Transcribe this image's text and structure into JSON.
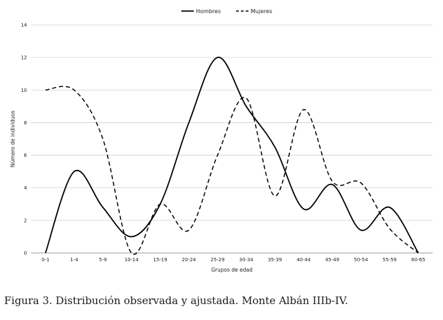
{
  "caption": "Figura 3. Distribución observada y ajustada. Monte Albán IIIb-IV.",
  "chart_data": {
    "type": "line",
    "title": "",
    "xlabel": "Grupos de edad",
    "ylabel": "Número de individuos",
    "categories": [
      "0-1",
      "1-4",
      "5-9",
      "10-14",
      "15-19",
      "20-24",
      "25-29",
      "30-34",
      "35-39",
      "40-44",
      "45-49",
      "50-54",
      "55-59",
      "60-65"
    ],
    "ylim": [
      0,
      14
    ],
    "yticks": [
      "0",
      "2",
      "4",
      "6",
      "8",
      "10",
      "12",
      "14"
    ],
    "grid": true,
    "legend_position": "top-center",
    "smooth": true,
    "series": [
      {
        "name": "Hombres",
        "style": "solid",
        "color": "#000000",
        "values": [
          0,
          5,
          2.8,
          1,
          3,
          8,
          12,
          9,
          6.5,
          2.7,
          4.2,
          1.4,
          2.8,
          0
        ]
      },
      {
        "name": "Mujeres",
        "style": "dashed",
        "color": "#000000",
        "values": [
          10,
          10,
          7,
          0,
          3,
          1.4,
          6,
          9.5,
          3.5,
          8.8,
          4.4,
          4.3,
          1.5,
          0
        ]
      }
    ]
  }
}
